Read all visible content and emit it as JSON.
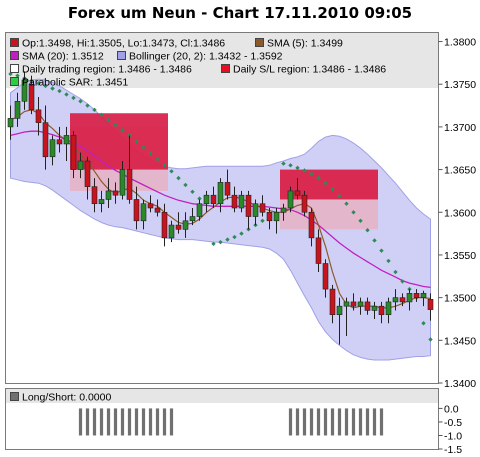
{
  "title": "Forex um Neun - Chart 17.11.2010 09:05",
  "legend": {
    "ohlc": "Op:1.3498, Hi:1.3505, Lo:1.3473, Cl:1.3486",
    "sma5": "SMA (5): 1.3499",
    "sma20": "SMA (20): 1.3512",
    "bollinger": "Bollinger (20, 2): 1.3432 - 1.3592",
    "daily_trading": "Daily trading region: 1.3486 - 1.3486",
    "daily_sl": "Daily S/L region: 1.3486 - 1.3486",
    "sar": "Parabolic SAR: 1.3451"
  },
  "sub_legend": {
    "longshort": "Long/Short: 0.0000"
  },
  "colors": {
    "up": "#2a8a2a",
    "down": "#c8141e",
    "sma5": "#8b5a2b",
    "sma20": "#c020c0",
    "bollinger_fill": "#c8c8f4",
    "bollinger_line": "#a0a0e8",
    "sar": "#2e8b57",
    "trading_region": "#d81e46",
    "sl_region": "#e8101e",
    "bar": "#707070",
    "legend_bg": "#e6e6e6"
  },
  "chart_data": [
    {
      "type": "candlestick",
      "ylim": [
        1.34,
        1.381
      ],
      "yticks": [
        "1.3400",
        "1.3450",
        "1.3500",
        "1.3550",
        "1.3600",
        "1.3650",
        "1.3700",
        "1.3750",
        "1.3800"
      ],
      "candles": [
        [
          1.37,
          1.3725,
          1.3685,
          1.371
        ],
        [
          1.371,
          1.374,
          1.37,
          1.373
        ],
        [
          1.373,
          1.3765,
          1.372,
          1.3755
        ],
        [
          1.375,
          1.376,
          1.3715,
          1.372
        ],
        [
          1.372,
          1.3735,
          1.369,
          1.3705
        ],
        [
          1.3705,
          1.3725,
          1.365,
          1.3665
        ],
        [
          1.3665,
          1.369,
          1.3655,
          1.3685
        ],
        [
          1.3685,
          1.37,
          1.367,
          1.368
        ],
        [
          1.368,
          1.37,
          1.366,
          1.369
        ],
        [
          1.369,
          1.3695,
          1.364,
          1.365
        ],
        [
          1.365,
          1.367,
          1.364,
          1.366
        ],
        [
          1.366,
          1.3665,
          1.3615,
          1.363
        ],
        [
          1.363,
          1.364,
          1.36,
          1.361
        ],
        [
          1.361,
          1.3625,
          1.36,
          1.3615
        ],
        [
          1.3615,
          1.364,
          1.3605,
          1.3625
        ],
        [
          1.3625,
          1.3635,
          1.361,
          1.362
        ],
        [
          1.362,
          1.366,
          1.3615,
          1.365
        ],
        [
          1.365,
          1.369,
          1.361,
          1.3615
        ],
        [
          1.3615,
          1.363,
          1.358,
          1.359
        ],
        [
          1.359,
          1.3615,
          1.358,
          1.361
        ],
        [
          1.361,
          1.362,
          1.36,
          1.3605
        ],
        [
          1.3605,
          1.3615,
          1.3595,
          1.36
        ],
        [
          1.36,
          1.361,
          1.356,
          1.357
        ],
        [
          1.357,
          1.359,
          1.3565,
          1.3585
        ],
        [
          1.3585,
          1.36,
          1.3575,
          1.358
        ],
        [
          1.358,
          1.36,
          1.357,
          1.359
        ],
        [
          1.359,
          1.3605,
          1.3585,
          1.3595
        ],
        [
          1.3595,
          1.3615,
          1.359,
          1.361
        ],
        [
          1.361,
          1.3625,
          1.36,
          1.362
        ],
        [
          1.362,
          1.363,
          1.3605,
          1.361
        ],
        [
          1.361,
          1.364,
          1.36,
          1.3635
        ],
        [
          1.3635,
          1.365,
          1.3615,
          1.362
        ],
        [
          1.362,
          1.363,
          1.36,
          1.3605
        ],
        [
          1.3605,
          1.3625,
          1.36,
          1.362
        ],
        [
          1.362,
          1.3625,
          1.358,
          1.3595
        ],
        [
          1.3595,
          1.3615,
          1.3585,
          1.361
        ],
        [
          1.361,
          1.362,
          1.3595,
          1.36
        ],
        [
          1.36,
          1.3605,
          1.358,
          1.359
        ],
        [
          1.359,
          1.3605,
          1.3575,
          1.36
        ],
        [
          1.36,
          1.361,
          1.359,
          1.3605
        ],
        [
          1.3605,
          1.363,
          1.36,
          1.3625
        ],
        [
          1.3625,
          1.364,
          1.3615,
          1.362
        ],
        [
          1.362,
          1.3625,
          1.3595,
          1.36
        ],
        [
          1.36,
          1.3605,
          1.356,
          1.357
        ],
        [
          1.357,
          1.358,
          1.353,
          1.354
        ],
        [
          1.354,
          1.3545,
          1.35,
          1.351
        ],
        [
          1.351,
          1.3515,
          1.347,
          1.348
        ],
        [
          1.348,
          1.35,
          1.3445,
          1.349
        ],
        [
          1.349,
          1.35,
          1.3455,
          1.3495
        ],
        [
          1.3495,
          1.3505,
          1.3485,
          1.349
        ],
        [
          1.349,
          1.35,
          1.348,
          1.3495
        ],
        [
          1.3495,
          1.35,
          1.348,
          1.3485
        ],
        [
          1.3485,
          1.3495,
          1.3475,
          1.349
        ],
        [
          1.349,
          1.3495,
          1.347,
          1.348
        ],
        [
          1.348,
          1.35,
          1.347,
          1.3495
        ],
        [
          1.3495,
          1.351,
          1.3485,
          1.35
        ],
        [
          1.35,
          1.3505,
          1.349,
          1.3495
        ],
        [
          1.3495,
          1.351,
          1.3485,
          1.3505
        ],
        [
          1.3505,
          1.351,
          1.3495,
          1.35
        ],
        [
          1.35,
          1.3508,
          1.349,
          1.3505
        ],
        [
          1.3498,
          1.3505,
          1.3473,
          1.3486
        ]
      ],
      "sma5": [
        1.3708,
        1.3712,
        1.3718,
        1.372,
        1.3716,
        1.3705,
        1.3698,
        1.369,
        1.3684,
        1.3676,
        1.3668,
        1.366,
        1.3648,
        1.3636,
        1.3627,
        1.3622,
        1.3626,
        1.3628,
        1.3622,
        1.3614,
        1.361,
        1.3607,
        1.36,
        1.3594,
        1.3588,
        1.3586,
        1.3587,
        1.3592,
        1.36,
        1.3606,
        1.3612,
        1.3617,
        1.3618,
        1.3616,
        1.3612,
        1.3608,
        1.3605,
        1.3602,
        1.36,
        1.36,
        1.3604,
        1.3608,
        1.361,
        1.3605,
        1.3585,
        1.356,
        1.353,
        1.3505,
        1.3492,
        1.3488,
        1.349,
        1.349,
        1.349,
        1.3488,
        1.3488,
        1.349,
        1.3493,
        1.3497,
        1.35,
        1.35,
        1.3499
      ],
      "sma20": [
        1.369,
        1.3692,
        1.3694,
        1.3695,
        1.3695,
        1.3693,
        1.3691,
        1.3688,
        1.3685,
        1.3681,
        1.3677,
        1.3672,
        1.3666,
        1.366,
        1.3654,
        1.3649,
        1.3645,
        1.364,
        1.3636,
        1.3632,
        1.3628,
        1.3624,
        1.362,
        1.3617,
        1.3614,
        1.3612,
        1.361,
        1.3609,
        1.3608,
        1.3607,
        1.3607,
        1.3607,
        1.3607,
        1.3607,
        1.3607,
        1.3607,
        1.3607,
        1.3606,
        1.3605,
        1.3604,
        1.3603,
        1.36,
        1.3596,
        1.3591,
        1.3585,
        1.3578,
        1.3571,
        1.3564,
        1.3558,
        1.3552,
        1.3547,
        1.3542,
        1.3537,
        1.3532,
        1.3528,
        1.3524,
        1.352,
        1.3517,
        1.3515,
        1.3513,
        1.3512
      ],
      "bb_upper": [
        1.374,
        1.3746,
        1.3752,
        1.3755,
        1.3756,
        1.3755,
        1.3752,
        1.3748,
        1.3743,
        1.3738,
        1.3733,
        1.3727,
        1.372,
        1.3712,
        1.3703,
        1.3695,
        1.3687,
        1.368,
        1.3673,
        1.3667,
        1.3662,
        1.3657,
        1.3654,
        1.3652,
        1.3651,
        1.3651,
        1.3652,
        1.3653,
        1.3654,
        1.3654,
        1.3654,
        1.3654,
        1.3654,
        1.3654,
        1.3654,
        1.3654,
        1.3654,
        1.3655,
        1.3658,
        1.366,
        1.3663,
        1.3665,
        1.3668,
        1.3675,
        1.3683,
        1.3688,
        1.369,
        1.3689,
        1.3686,
        1.3681,
        1.3675,
        1.3668,
        1.366,
        1.3652,
        1.3643,
        1.3634,
        1.3624,
        1.3614,
        1.3605,
        1.3598,
        1.3592
      ],
      "bb_lower": [
        1.364,
        1.3638,
        1.3636,
        1.3635,
        1.3634,
        1.3631,
        1.3626,
        1.362,
        1.3614,
        1.3608,
        1.3602,
        1.3597,
        1.3592,
        1.3588,
        1.3585,
        1.3583,
        1.3582,
        1.358,
        1.3578,
        1.3576,
        1.3574,
        1.3572,
        1.357,
        1.3569,
        1.3568,
        1.3568,
        1.3568,
        1.3567,
        1.3566,
        1.3565,
        1.3565,
        1.3564,
        1.3563,
        1.3562,
        1.3561,
        1.356,
        1.3559,
        1.3557,
        1.3552,
        1.3545,
        1.3532,
        1.3517,
        1.3502,
        1.3488,
        1.3472,
        1.346,
        1.3451,
        1.3444,
        1.3438,
        1.3433,
        1.343,
        1.3428,
        1.3427,
        1.3427,
        1.3427,
        1.3428,
        1.3429,
        1.343,
        1.3431,
        1.3431,
        1.3432
      ],
      "sar": [
        1.3762,
        1.376,
        1.3757,
        1.3754,
        1.3751,
        1.3748,
        1.3745,
        1.3742,
        1.3738,
        1.3734,
        1.373,
        1.3725,
        1.372,
        1.3714,
        1.3708,
        1.3702,
        1.3696,
        1.369,
        1.3683,
        1.3676,
        1.3669,
        1.3662,
        1.3655,
        1.3648,
        1.364,
        1.3632,
        1.3624,
        1.3616,
        null,
        1.3563,
        1.3565,
        1.3568,
        1.3571,
        1.3575,
        1.358,
        1.3585,
        1.359,
        1.3597,
        null,
        1.3657,
        1.3655,
        1.3652,
        1.3649,
        1.3645,
        1.364,
        1.3634,
        1.3627,
        1.3619,
        1.361,
        1.36,
        1.359,
        1.3579,
        1.3567,
        1.3555,
        1.3543,
        1.353,
        1.3519,
        1.351,
        1.35,
        1.347,
        1.3451
      ],
      "trading_regions": [
        {
          "i0": 8.5,
          "i1": 22.5,
          "lo": 1.365,
          "hi": 1.3716
        },
        {
          "i0": 38.5,
          "i1": 52.5,
          "lo": 1.3615,
          "hi": 1.365
        }
      ],
      "sl_regions": [
        {
          "i0": 8.5,
          "i1": 22.5,
          "lo": 1.3625,
          "hi": 1.37
        },
        {
          "i0": 38.5,
          "i1": 52.5,
          "lo": 1.358,
          "hi": 1.365
        }
      ]
    },
    {
      "type": "bar",
      "name": "Long/Short",
      "ylim": [
        -1.5,
        0.2
      ],
      "yticks": [
        "0.0",
        "-0.5",
        "-1.0",
        "-1.5"
      ],
      "values": [
        0,
        0,
        0,
        0,
        0,
        0,
        0,
        0,
        0,
        0,
        -1,
        -1,
        -1,
        -1,
        -1,
        -1,
        -1,
        -1,
        -1,
        -1,
        -1,
        -1,
        -1,
        -1,
        0,
        0,
        0,
        0,
        0,
        0,
        0,
        0,
        0,
        0,
        0,
        0,
        0,
        0,
        0,
        0,
        -1,
        -1,
        -1,
        -1,
        -1,
        -1,
        -1,
        -1,
        -1,
        -1,
        -1,
        -1,
        -1,
        -1,
        0,
        0,
        0,
        0,
        0,
        0,
        0
      ]
    }
  ]
}
